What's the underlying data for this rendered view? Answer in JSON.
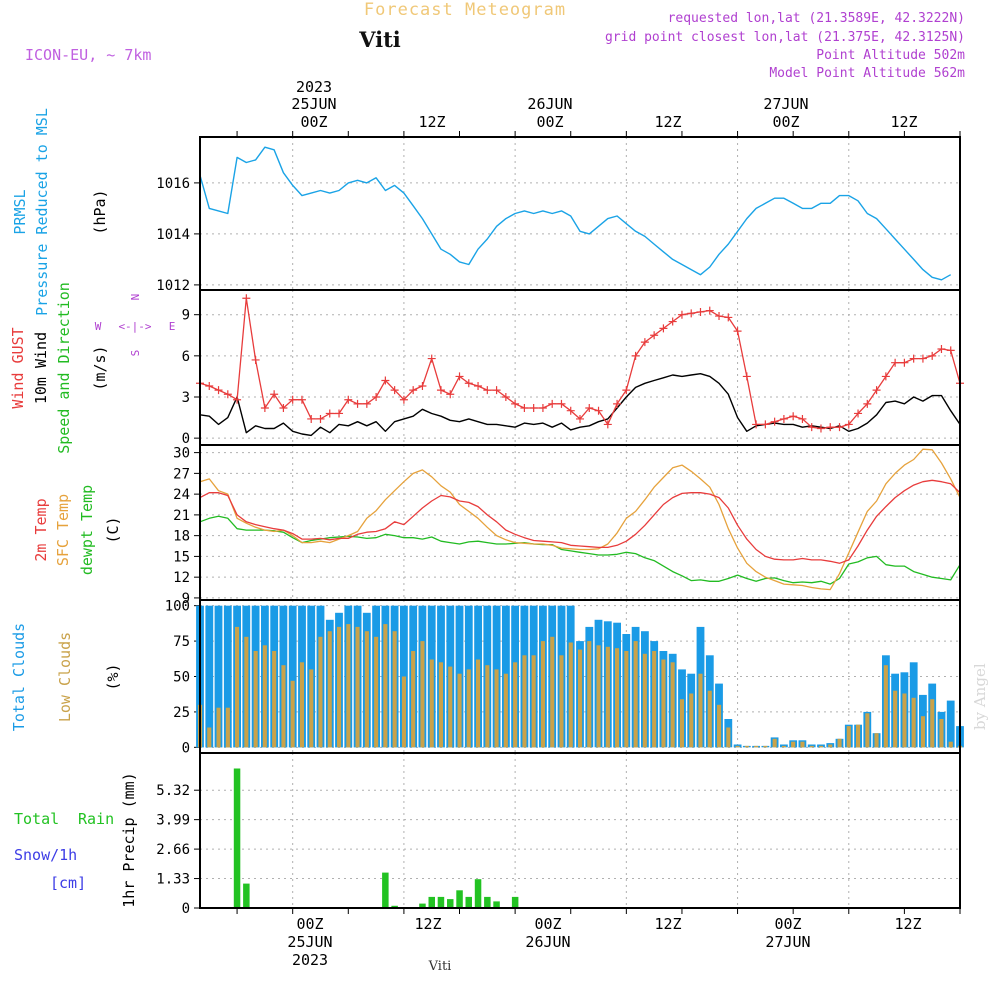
{
  "header": {
    "title": "Forecast Meteogram",
    "location": "Viti",
    "model": "ICON-EU, ~ 7km",
    "requested": "requested lon,lat (21.3589E, 42.3222N)",
    "grid_point": "grid point closest lon,lat (21.375E, 42.3125N)",
    "point_alt": "Point Altitude 502m",
    "model_alt": "Model Point Altitude 562m",
    "credit": "by Angel",
    "footer_location": "Viti"
  },
  "time_axis": {
    "top": [
      {
        "day": "25JUN",
        "hour": "00Z",
        "year": "2023"
      },
      {
        "hour": "12Z"
      },
      {
        "day": "26JUN",
        "hour": "00Z"
      },
      {
        "hour": "12Z"
      },
      {
        "day": "27JUN",
        "hour": "00Z"
      },
      {
        "hour": "12Z"
      }
    ],
    "bottom": [
      {
        "hour": "00Z",
        "day": "25JUN",
        "year": "2023"
      },
      {
        "hour": "12Z"
      },
      {
        "hour": "00Z",
        "day": "26JUN"
      },
      {
        "hour": "12Z"
      },
      {
        "hour": "00Z",
        "day": "27JUN"
      },
      {
        "hour": "12Z"
      }
    ]
  },
  "colors": {
    "pressure": "#1aa3e6",
    "gust": "#e83c3c",
    "wind": "#000000",
    "direction": "#22bb22",
    "temp": "#e83c3c",
    "sfc": "#e6a23c",
    "dewpt": "#22bb22",
    "total_clouds": "#1a9be6",
    "low_clouds": "#c9a24a",
    "rain": "#22c222",
    "snow": "#3c3ce6",
    "header_title": "#f0c878",
    "purple": "#b040d0",
    "model": "#c060e0"
  },
  "chart_data": [
    {
      "type": "line",
      "id": "pressure",
      "ylabels": [
        "PRMSL",
        "Pressure Reduced to MSL",
        "(hPa)"
      ],
      "ylim": [
        1011.8,
        1017.8
      ],
      "yticks": [
        1012,
        1014,
        1016
      ],
      "x_start_hour": -10,
      "x_step_hours": 1,
      "values": [
        1016.3,
        1015.0,
        1014.9,
        1014.8,
        1017.0,
        1016.8,
        1016.9,
        1017.4,
        1017.3,
        1016.4,
        1015.9,
        1015.5,
        1015.6,
        1015.7,
        1015.6,
        1015.7,
        1016.0,
        1016.1,
        1016.0,
        1016.2,
        1015.7,
        1015.9,
        1015.6,
        1015.1,
        1014.6,
        1014.0,
        1013.4,
        1013.2,
        1012.9,
        1012.8,
        1013.4,
        1013.8,
        1014.3,
        1014.6,
        1014.8,
        1014.9,
        1014.8,
        1014.9,
        1014.8,
        1014.9,
        1014.7,
        1014.1,
        1014.0,
        1014.3,
        1014.6,
        1014.7,
        1014.4,
        1014.1,
        1013.9,
        1013.6,
        1013.3,
        1013.0,
        1012.8,
        1012.6,
        1012.4,
        1012.7,
        1013.2,
        1013.6,
        1014.1,
        1014.6,
        1015.0,
        1015.2,
        1015.4,
        1015.4,
        1015.2,
        1015.0,
        1015.0,
        1015.2,
        1015.2,
        1015.5,
        1015.5,
        1015.3,
        1014.8,
        1014.6,
        1014.2,
        1013.8,
        1013.4,
        1013.0,
        1012.6,
        1012.3,
        1012.2,
        1012.4
      ]
    },
    {
      "type": "line",
      "id": "wind",
      "ylabels": [
        "Wind GUST",
        "10m Wind",
        "Speed and Direction",
        "(m/s)"
      ],
      "compass": {
        "n": "N",
        "s": "S",
        "w": "W",
        "e": "E"
      },
      "ylim": [
        -0.5,
        10.8
      ],
      "yticks": [
        0,
        3,
        6,
        9
      ],
      "x_start_hour": -10,
      "x_step_hours": 1,
      "series": [
        {
          "name": "Wind GUST",
          "values": [
            4.0,
            3.8,
            3.5,
            3.2,
            2.8,
            10.2,
            5.7,
            2.2,
            3.2,
            2.2,
            2.8,
            2.8,
            1.4,
            1.4,
            1.8,
            1.8,
            2.8,
            2.5,
            2.5,
            3.0,
            4.2,
            3.5,
            2.8,
            3.5,
            3.8,
            5.8,
            3.5,
            3.2,
            4.5,
            4.0,
            3.8,
            3.5,
            3.5,
            3.0,
            2.5,
            2.2,
            2.2,
            2.2,
            2.5,
            2.5,
            2.0,
            1.4,
            2.2,
            2.0,
            1.0,
            2.5,
            3.5,
            6.0,
            7.0,
            7.5,
            8.0,
            8.5,
            9.0,
            9.1,
            9.2,
            9.3,
            8.9,
            8.8,
            7.8,
            4.5,
            1.0,
            1.0,
            1.2,
            1.4,
            1.6,
            1.4,
            0.8,
            0.7,
            0.8,
            0.8,
            1.0,
            1.8,
            2.5,
            3.5,
            4.5,
            5.5,
            5.5,
            5.8,
            5.8,
            6.0,
            6.5,
            6.4,
            4.0
          ]
        },
        {
          "name": "10m Wind",
          "values": [
            1.7,
            1.6,
            1.0,
            1.5,
            3.0,
            0.4,
            0.9,
            0.7,
            0.7,
            1.1,
            0.5,
            0.3,
            0.2,
            0.8,
            0.4,
            1.0,
            0.9,
            1.2,
            0.9,
            1.2,
            0.5,
            1.2,
            1.4,
            1.6,
            2.1,
            1.8,
            1.6,
            1.3,
            1.2,
            1.4,
            1.2,
            1.0,
            1.0,
            0.9,
            0.8,
            1.1,
            1.0,
            1.1,
            0.8,
            1.1,
            0.6,
            0.8,
            0.9,
            1.2,
            1.4,
            2.2,
            3.0,
            3.7,
            4.0,
            4.2,
            4.4,
            4.6,
            4.5,
            4.6,
            4.7,
            4.5,
            4.0,
            3.2,
            1.5,
            0.5,
            0.9,
            1.0,
            1.1,
            1.0,
            1.0,
            0.8,
            0.9,
            0.8,
            0.7,
            0.9,
            0.5,
            0.7,
            1.1,
            1.7,
            2.6,
            2.7,
            2.5,
            3.0,
            2.7,
            3.1,
            3.1,
            2.0,
            1.0
          ]
        }
      ]
    },
    {
      "type": "line",
      "id": "temperature",
      "ylabels": [
        "2m Temp",
        "SFC Temp",
        "dewpt Temp",
        "(C)"
      ],
      "ylim": [
        8.7,
        31.1
      ],
      "yticks": [
        9,
        12,
        15,
        18,
        21,
        24,
        27,
        30
      ],
      "x_start_hour": -10,
      "x_step_hours": 1,
      "series": [
        {
          "name": "2m Temp",
          "values": [
            23.5,
            24.2,
            24.2,
            23.8,
            21.0,
            20.0,
            19.6,
            19.3,
            19.0,
            18.8,
            18.3,
            17.5,
            17.5,
            17.6,
            17.4,
            17.6,
            17.6,
            18.2,
            18.5,
            18.6,
            19.0,
            20.0,
            19.6,
            20.8,
            22.0,
            23.0,
            23.8,
            23.6,
            23.0,
            22.8,
            22.2,
            21.0,
            20.0,
            18.8,
            18.2,
            17.7,
            17.3,
            17.2,
            17.1,
            17.0,
            16.6,
            16.5,
            16.4,
            16.3,
            16.3,
            16.6,
            17.2,
            18.2,
            19.5,
            21.0,
            22.5,
            23.5,
            24.1,
            24.2,
            24.2,
            24.0,
            23.5,
            22.0,
            19.5,
            17.5,
            16.0,
            15.0,
            14.6,
            14.5,
            14.5,
            14.7,
            14.5,
            14.5,
            14.3,
            14.0,
            14.5,
            16.5,
            18.8,
            20.8,
            22.2,
            23.5,
            24.5,
            25.3,
            25.8,
            26.0,
            25.8,
            25.5,
            24.2
          ]
        },
        {
          "name": "SFC Temp",
          "values": [
            25.8,
            26.2,
            24.5,
            24.0,
            20.5,
            19.8,
            19.2,
            18.8,
            18.6,
            18.8,
            18.0,
            17.0,
            17.0,
            17.2,
            17.0,
            17.5,
            18.0,
            18.6,
            20.5,
            21.6,
            23.2,
            24.5,
            25.8,
            27.0,
            27.5,
            26.5,
            25.2,
            24.3,
            22.5,
            21.5,
            20.5,
            19.2,
            18.0,
            17.4,
            17.0,
            16.9,
            16.8,
            16.8,
            16.6,
            16.2,
            16.1,
            16.0,
            16.0,
            16.1,
            16.8,
            18.4,
            20.5,
            21.5,
            23.2,
            25.0,
            26.4,
            27.8,
            28.2,
            27.3,
            26.2,
            25.0,
            22.5,
            19.0,
            16.2,
            14.0,
            12.8,
            12.0,
            11.5,
            11.0,
            10.9,
            10.8,
            10.5,
            10.3,
            10.2,
            12.5,
            15.5,
            18.5,
            21.5,
            23.0,
            25.5,
            27.0,
            28.2,
            29.0,
            30.5,
            30.4,
            28.5,
            26.2,
            23.5
          ]
        },
        {
          "name": "dewpt Temp",
          "values": [
            20.0,
            20.5,
            20.8,
            20.5,
            19.0,
            18.8,
            18.8,
            18.8,
            18.7,
            18.5,
            17.7,
            17.0,
            17.3,
            17.5,
            17.7,
            17.8,
            17.9,
            17.8,
            17.6,
            17.7,
            18.2,
            18.0,
            17.7,
            17.7,
            17.5,
            17.8,
            17.2,
            17.0,
            16.8,
            17.1,
            17.2,
            17.0,
            16.8,
            16.8,
            16.9,
            17.0,
            16.8,
            16.7,
            16.7,
            16.0,
            15.8,
            15.6,
            15.4,
            15.2,
            15.2,
            15.3,
            15.6,
            15.4,
            14.8,
            14.4,
            13.6,
            12.8,
            12.2,
            11.5,
            11.6,
            11.4,
            11.4,
            11.8,
            12.3,
            11.8,
            11.4,
            11.8,
            11.9,
            11.5,
            11.2,
            11.3,
            11.2,
            11.4,
            11.0,
            11.8,
            13.9,
            14.2,
            14.8,
            15.0,
            13.8,
            13.6,
            13.6,
            12.8,
            12.4,
            12.0,
            11.8,
            11.6,
            13.8
          ]
        }
      ]
    },
    {
      "type": "bar",
      "id": "clouds",
      "ylabels": [
        "Total Clouds",
        "Low Clouds",
        "(%)"
      ],
      "ylim": [
        -4,
        104
      ],
      "yticks": [
        0,
        25,
        50,
        75,
        100
      ],
      "x_start_hour": -10,
      "x_step_hours": 1,
      "series": [
        {
          "name": "Total Clouds",
          "values": [
            100,
            100,
            100,
            100,
            100,
            100,
            100,
            100,
            100,
            100,
            100,
            100,
            100,
            100,
            90,
            95,
            100,
            100,
            95,
            100,
            100,
            100,
            100,
            100,
            100,
            100,
            100,
            100,
            100,
            100,
            100,
            100,
            100,
            100,
            100,
            100,
            100,
            100,
            100,
            100,
            100,
            75,
            85,
            90,
            89,
            88,
            80,
            85,
            82,
            75,
            68,
            66,
            55,
            52,
            85,
            65,
            45,
            20,
            2,
            1,
            1,
            1,
            7,
            2,
            5,
            5,
            2,
            2,
            3,
            6,
            16,
            16,
            25,
            10,
            65,
            52,
            53,
            60,
            37,
            45,
            25,
            33,
            15
          ]
        },
        {
          "name": "Low Clouds",
          "values": [
            30,
            14,
            28,
            28,
            85,
            78,
            68,
            72,
            68,
            58,
            47,
            60,
            55,
            78,
            82,
            85,
            87,
            85,
            82,
            78,
            87,
            82,
            50,
            68,
            75,
            62,
            60,
            57,
            52,
            55,
            62,
            58,
            55,
            52,
            60,
            65,
            65,
            75,
            78,
            65,
            74,
            69,
            75,
            72,
            71,
            70,
            68,
            75,
            66,
            68,
            62,
            60,
            34,
            38,
            52,
            40,
            30,
            14,
            1,
            1,
            1,
            1,
            6,
            1,
            4,
            4,
            1,
            1,
            2,
            6,
            15,
            16,
            24,
            10,
            58,
            40,
            38,
            35,
            22,
            34,
            20,
            4,
            1
          ]
        }
      ]
    },
    {
      "type": "bar",
      "id": "precip",
      "ylabels": [
        "1hr Precip (mm)"
      ],
      "legend": {
        "line1_a": "Total",
        "line1_b": "Rain",
        "line2": "Snow/1h",
        "line3": "[cm]"
      },
      "ylim": [
        0,
        7
      ],
      "yticks": [
        0,
        1.33,
        2.66,
        3.99,
        5.32
      ],
      "ytick_labels": [
        "0",
        "1.33",
        "2.66",
        "3.99",
        "5.32"
      ],
      "x_start_hour": -10,
      "x_step_hours": 1,
      "values": [
        0,
        0,
        0,
        0,
        6.3,
        1.1,
        0,
        0,
        0,
        0,
        0,
        0,
        0,
        0,
        0,
        0,
        0,
        0,
        0,
        0,
        1.6,
        0.1,
        0,
        0,
        0.2,
        0.5,
        0.5,
        0.4,
        0.8,
        0.5,
        1.3,
        0.5,
        0.3,
        0,
        0.5,
        0,
        0,
        0,
        0,
        0,
        0,
        0,
        0,
        0,
        0,
        0,
        0,
        0,
        0,
        0,
        0,
        0,
        0,
        0,
        0,
        0,
        0,
        0,
        0,
        0,
        0,
        0,
        0,
        0,
        0,
        0,
        0,
        0,
        0,
        0,
        0,
        0,
        0,
        0,
        0,
        0,
        0,
        0,
        0,
        0,
        0,
        0,
        0
      ]
    }
  ]
}
